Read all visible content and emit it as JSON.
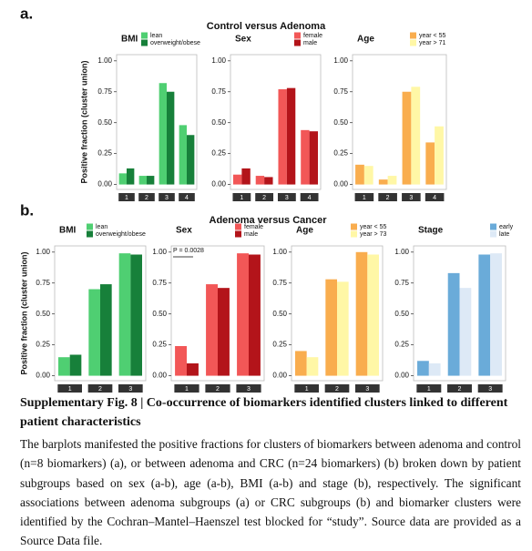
{
  "figure": {
    "panel_a_label": "a.",
    "panel_a_title": "Control versus Adenoma",
    "panel_b_label": "b.",
    "panel_b_title": "Adenoma versus Cancer",
    "caption_title": "Supplementary Fig. 8 | Co-occurrence of biomarkers identified clusters linked to different patient characteristics",
    "caption_body": "The barplots manifested the positive fractions for clusters of biomarkers between adenoma and control (n=8 biomarkers) (a), or between adenoma and CRC (n=24 biomarkers) (b) broken down by patient subgroups based on sex (a-b), age (a-b), BMI (a-b) and stage (b), respectively. The significant associations between adenoma subgroups (a) or CRC subgroups (b) and biomarker clusters were identified by the Cochran–Mantel–Haenszel test blocked for “study”. Source data are provided as a Source Data file."
  },
  "chart_data": [
    {
      "type": "bar",
      "title": "BMI",
      "ylabel": "Positive fraction (cluster union)",
      "categories": [
        "1",
        "2",
        "3",
        "4"
      ],
      "series": [
        {
          "name": "lean",
          "color": "#4fcf72",
          "values": [
            0.09,
            0.07,
            0.82,
            0.48
          ]
        },
        {
          "name": "overweight/obese",
          "color": "#17803a",
          "values": [
            0.13,
            0.07,
            0.75,
            0.4
          ]
        }
      ],
      "ylim": [
        -0.04,
        1.05
      ],
      "yticks": [
        {
          "value": 0,
          "label": "0.00"
        },
        {
          "value": 0.25,
          "label": "0.25"
        },
        {
          "value": 0.5,
          "label": "0.50"
        },
        {
          "value": 0.75,
          "label": "0.75"
        },
        {
          "value": 1,
          "label": "1.00"
        }
      ]
    },
    {
      "type": "bar",
      "title": "Sex",
      "categories": [
        "1",
        "2",
        "3",
        "4"
      ],
      "series": [
        {
          "name": "female",
          "color": "#f25757",
          "values": [
            0.08,
            0.07,
            0.77,
            0.44
          ]
        },
        {
          "name": "male",
          "color": "#b3141a",
          "values": [
            0.13,
            0.06,
            0.78,
            0.43
          ]
        }
      ],
      "ylim": [
        -0.04,
        1.05
      ],
      "yticks": [
        {
          "value": 0,
          "label": "0.00"
        },
        {
          "value": 0.25,
          "label": "0.25"
        },
        {
          "value": 0.5,
          "label": "0.50"
        },
        {
          "value": 0.75,
          "label": "0.75"
        },
        {
          "value": 1,
          "label": "1.00"
        }
      ]
    },
    {
      "type": "bar",
      "title": "Age",
      "categories": [
        "1",
        "2",
        "3",
        "4"
      ],
      "series": [
        {
          "name": "year < 55",
          "color": "#f9ad4e",
          "values": [
            0.16,
            0.04,
            0.75,
            0.34
          ]
        },
        {
          "name": "year > 71",
          "color": "#fff7a6",
          "values": [
            0.15,
            0.07,
            0.79,
            0.47
          ]
        }
      ],
      "ylim": [
        -0.04,
        1.05
      ],
      "yticks": [
        {
          "value": 0,
          "label": "0.00"
        },
        {
          "value": 0.25,
          "label": "0.25"
        },
        {
          "value": 0.5,
          "label": "0.50"
        },
        {
          "value": 0.75,
          "label": "0.75"
        },
        {
          "value": 1,
          "label": "1.00"
        }
      ]
    },
    {
      "type": "bar",
      "title": "BMI",
      "ylabel": "Positive fraction (cluster union)",
      "categories": [
        "1",
        "2",
        "3"
      ],
      "series": [
        {
          "name": "lean",
          "color": "#4fcf72",
          "values": [
            0.15,
            0.7,
            0.99
          ]
        },
        {
          "name": "overweight/obese",
          "color": "#17803a",
          "values": [
            0.17,
            0.74,
            0.98
          ]
        }
      ],
      "ylim": [
        -0.04,
        1.05
      ],
      "yticks": [
        {
          "value": 0,
          "label": "0.00"
        },
        {
          "value": 0.25,
          "label": "0.25"
        },
        {
          "value": 0.5,
          "label": "0.50"
        },
        {
          "value": 0.75,
          "label": "0.75"
        },
        {
          "value": 1,
          "label": "1.00"
        }
      ]
    },
    {
      "type": "bar",
      "title": "Sex",
      "annotation": "P = 0.0028",
      "categories": [
        "1",
        "2",
        "3"
      ],
      "series": [
        {
          "name": "female",
          "color": "#f25757",
          "values": [
            0.24,
            0.74,
            0.99
          ]
        },
        {
          "name": "male",
          "color": "#b3141a",
          "values": [
            0.1,
            0.71,
            0.98
          ]
        }
      ],
      "ylim": [
        -0.04,
        1.05
      ],
      "yticks": [
        {
          "value": 0,
          "label": "0.00"
        },
        {
          "value": 0.25,
          "label": "0.25"
        },
        {
          "value": 0.5,
          "label": "0.50"
        },
        {
          "value": 0.75,
          "label": "0.75"
        },
        {
          "value": 1,
          "label": "1.00"
        }
      ]
    },
    {
      "type": "bar",
      "title": "Age",
      "categories": [
        "1",
        "2",
        "3"
      ],
      "series": [
        {
          "name": "year < 55",
          "color": "#f9ad4e",
          "values": [
            0.2,
            0.78,
            1.0
          ]
        },
        {
          "name": "year > 73",
          "color": "#fff7a6",
          "values": [
            0.15,
            0.76,
            0.98
          ]
        }
      ],
      "ylim": [
        -0.04,
        1.05
      ],
      "yticks": [
        {
          "value": 0,
          "label": "0.00"
        },
        {
          "value": 0.25,
          "label": "0.25"
        },
        {
          "value": 0.5,
          "label": "0.50"
        },
        {
          "value": 0.75,
          "label": "0.75"
        },
        {
          "value": 1,
          "label": "1.00"
        }
      ]
    },
    {
      "type": "bar",
      "title": "Stage",
      "categories": [
        "1",
        "2",
        "3"
      ],
      "series": [
        {
          "name": "early",
          "color": "#6aabd9",
          "values": [
            0.12,
            0.83,
            0.98
          ]
        },
        {
          "name": "late",
          "color": "#dde9f6",
          "values": [
            0.1,
            0.71,
            0.99
          ]
        }
      ],
      "ylim": [
        -0.04,
        1.05
      ],
      "yticks": [
        {
          "value": 0,
          "label": "0.00"
        },
        {
          "value": 0.25,
          "label": "0.25"
        },
        {
          "value": 0.5,
          "label": "0.50"
        },
        {
          "value": 0.75,
          "label": "0.75"
        },
        {
          "value": 1,
          "label": "1.00"
        }
      ]
    }
  ]
}
